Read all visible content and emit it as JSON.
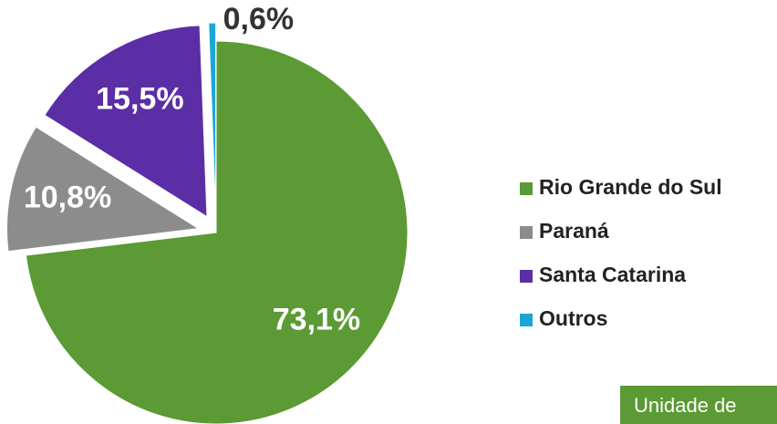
{
  "chart_data": {
    "type": "pie",
    "categories": [
      "Rio Grande do Sul",
      "Paraná",
      "Santa Catarina",
      "Outros"
    ],
    "values": [
      73.1,
      10.8,
      15.5,
      0.6
    ],
    "value_labels": [
      "73,1%",
      "10,8%",
      "15,5%",
      "0,6%"
    ],
    "colors": [
      "#5b9a34",
      "#8c8c8c",
      "#5b2ea6",
      "#1ba6d8"
    ],
    "legend": "right"
  },
  "footer": {
    "text": "Unidade de"
  }
}
